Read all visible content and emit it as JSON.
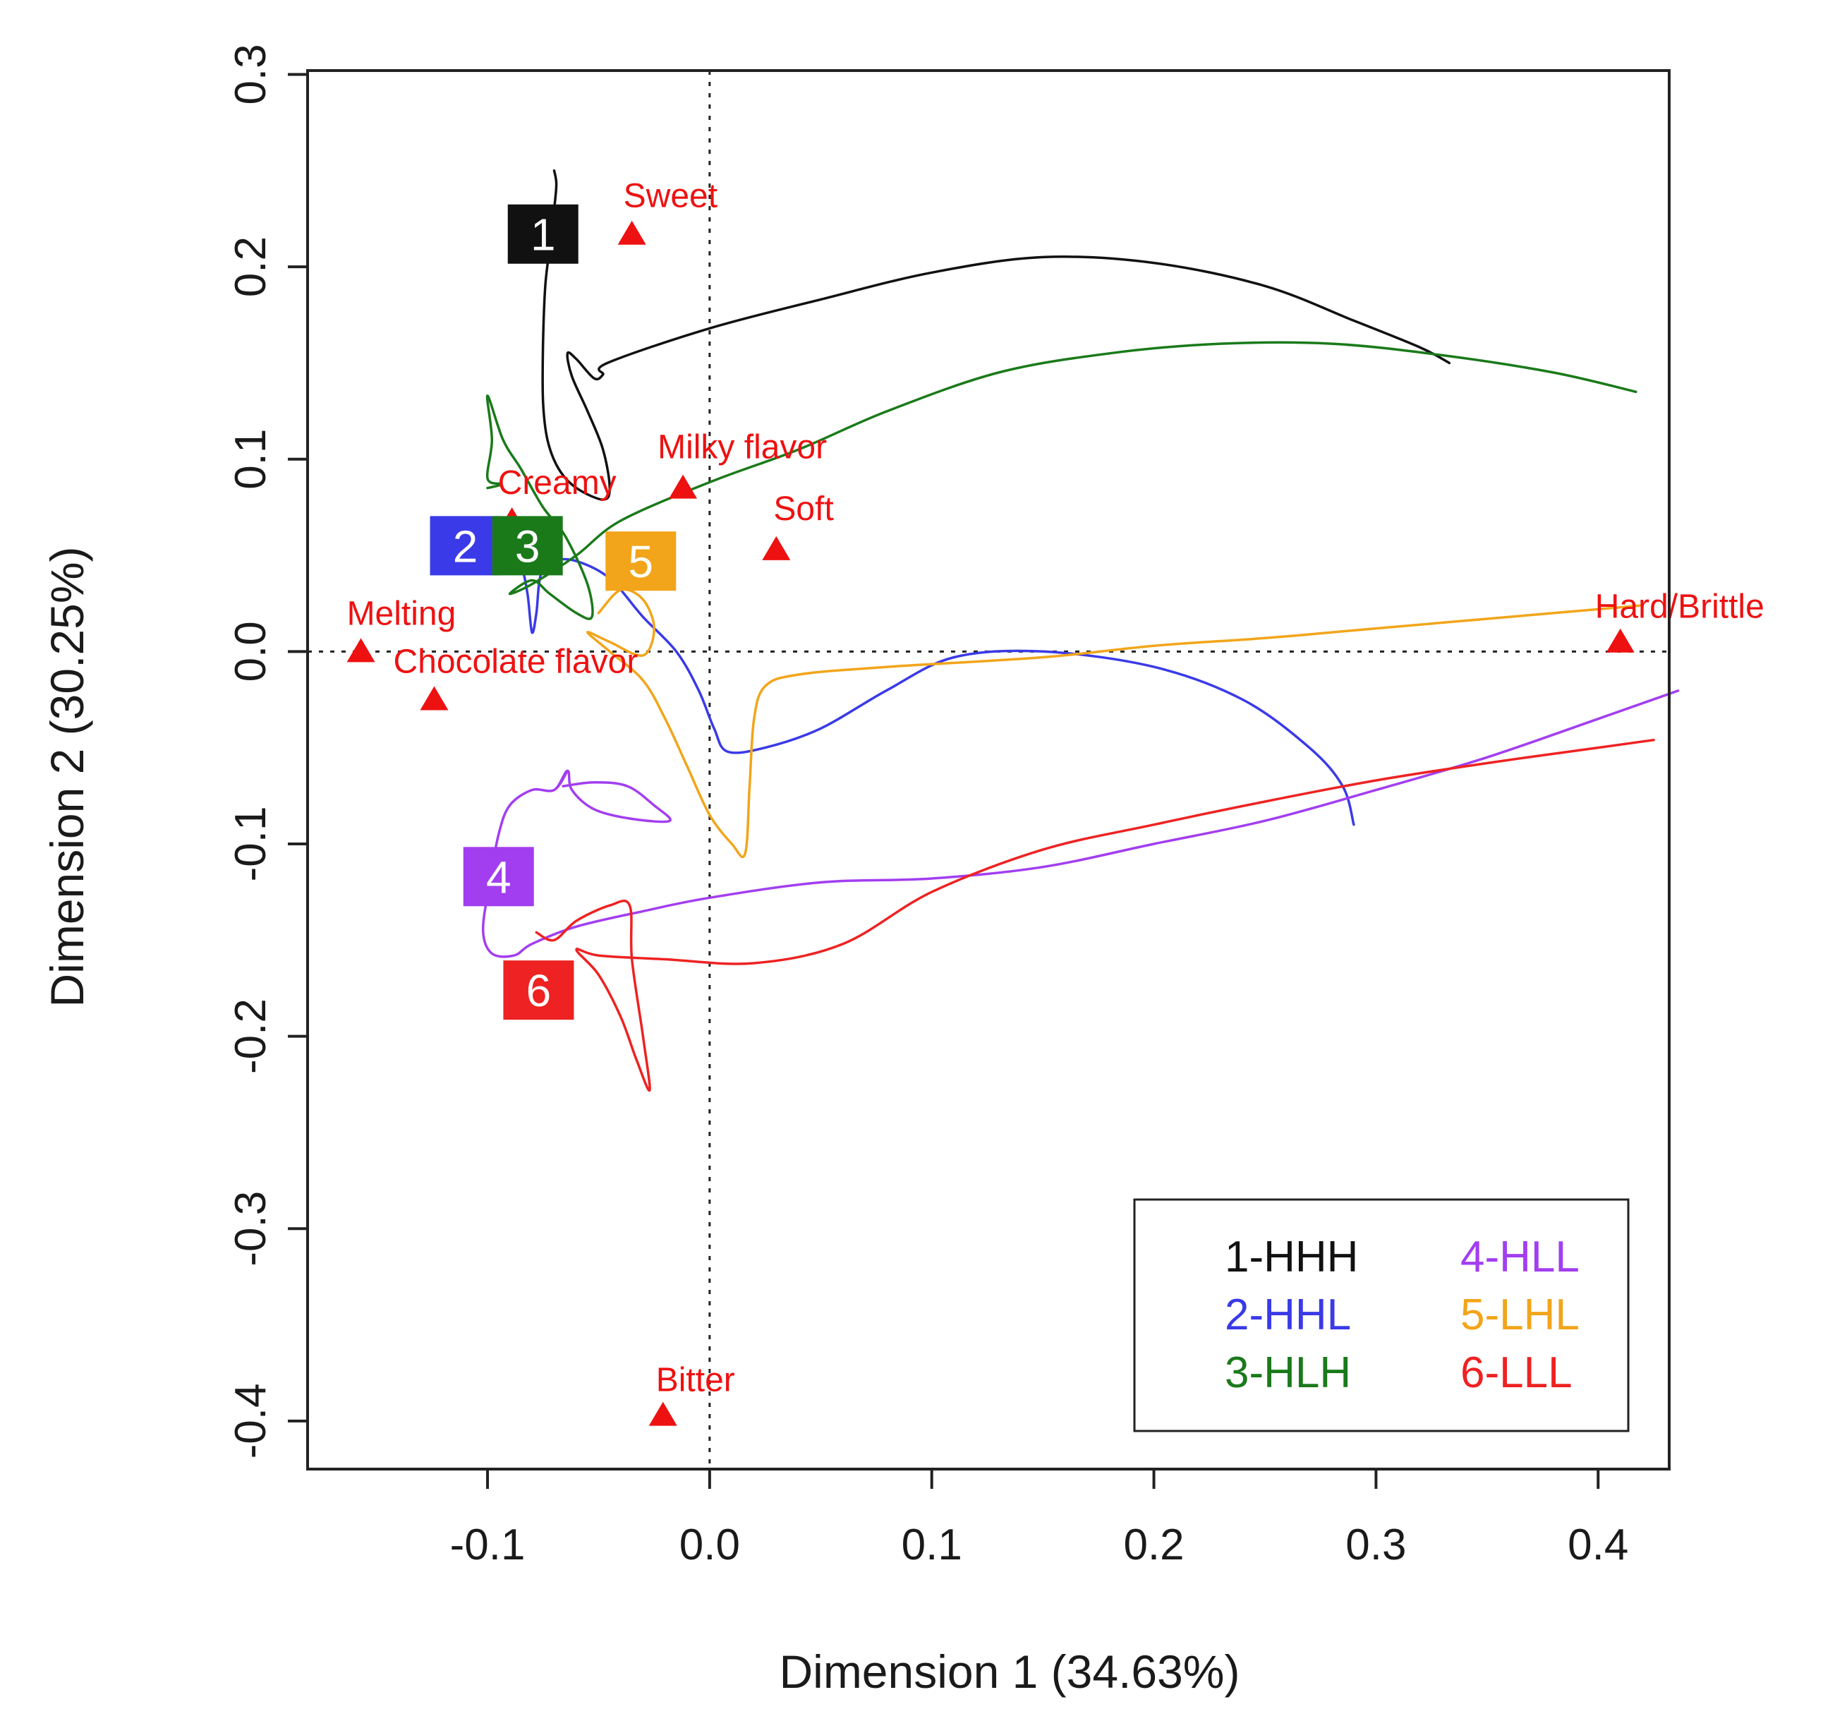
{
  "chart_data": {
    "type": "line",
    "xlabel": "Dimension 1 (34.63%)",
    "ylabel": "Dimension 2 (30.25%)",
    "xlim": [
      -0.181,
      0.432
    ],
    "ylim": [
      -0.425,
      0.302
    ],
    "x_ticks": [
      {
        "value": -0.1,
        "label": "-0.1"
      },
      {
        "value": 0.0,
        "label": "0.0"
      },
      {
        "value": 0.1,
        "label": "0.1"
      },
      {
        "value": 0.2,
        "label": "0.2"
      },
      {
        "value": 0.3,
        "label": "0.3"
      },
      {
        "value": 0.4,
        "label": "0.4"
      }
    ],
    "y_ticks": [
      {
        "value": 0.3,
        "label": "0.3"
      },
      {
        "value": 0.2,
        "label": "0.2"
      },
      {
        "value": 0.1,
        "label": "0.1"
      },
      {
        "value": 0.0,
        "label": "0.0"
      },
      {
        "value": -0.1,
        "label": "-0.1"
      },
      {
        "value": -0.2,
        "label": "-0.2"
      },
      {
        "value": -0.3,
        "label": "-0.3"
      },
      {
        "value": -0.4,
        "label": "-0.4"
      }
    ],
    "reference_lines": {
      "x": 0,
      "y": 0,
      "style": "dotted"
    },
    "attributes": [
      {
        "name": "Sweet",
        "x": -0.035,
        "y": 0.217
      },
      {
        "name": "Milky flavor",
        "x": -0.012,
        "y": 0.085
      },
      {
        "name": "Creamy",
        "x": -0.089,
        "y": 0.068
      },
      {
        "name": "Soft",
        "x": 0.03,
        "y": 0.053
      },
      {
        "name": "Melting",
        "x": -0.157,
        "y": 0.0
      },
      {
        "name": "Chocolate flavor",
        "x": -0.124,
        "y": -0.025
      },
      {
        "name": "Hard/Brittle",
        "x": 0.41,
        "y": 0.005
      },
      {
        "name": "Bitter",
        "x": -0.021,
        "y": -0.397
      }
    ],
    "series": [
      {
        "name": "1-HHH",
        "marker": "1",
        "color": "#111111",
        "marker_pos": {
          "x": -0.075,
          "y": 0.217
        },
        "points": [
          [
            -0.07,
            0.25
          ],
          [
            -0.069,
            0.243
          ],
          [
            -0.07,
            0.23
          ],
          [
            -0.072,
            0.21
          ],
          [
            -0.074,
            0.19
          ],
          [
            -0.075,
            0.16
          ],
          [
            -0.075,
            0.13
          ],
          [
            -0.073,
            0.11
          ],
          [
            -0.068,
            0.095
          ],
          [
            -0.06,
            0.085
          ],
          [
            -0.048,
            0.079
          ],
          [
            -0.045,
            0.085
          ],
          [
            -0.048,
            0.105
          ],
          [
            -0.055,
            0.125
          ],
          [
            -0.062,
            0.143
          ],
          [
            -0.064,
            0.155
          ],
          [
            -0.06,
            0.152
          ],
          [
            -0.052,
            0.142
          ],
          [
            -0.048,
            0.144
          ],
          [
            -0.046,
            0.15
          ],
          [
            0.0,
            0.168
          ],
          [
            0.05,
            0.183
          ],
          [
            0.1,
            0.197
          ],
          [
            0.15,
            0.205
          ],
          [
            0.2,
            0.202
          ],
          [
            0.25,
            0.19
          ],
          [
            0.29,
            0.172
          ],
          [
            0.32,
            0.158
          ],
          [
            0.333,
            0.15
          ]
        ]
      },
      {
        "name": "2-HHL",
        "marker": "2",
        "color": "#3a3ae8",
        "marker_pos": {
          "x": -0.11,
          "y": 0.055
        },
        "points": [
          [
            -0.09,
            0.05
          ],
          [
            -0.085,
            0.045
          ],
          [
            -0.082,
            0.03
          ],
          [
            -0.08,
            0.01
          ],
          [
            -0.078,
            0.02
          ],
          [
            -0.076,
            0.04
          ],
          [
            -0.07,
            0.047
          ],
          [
            -0.06,
            0.047
          ],
          [
            -0.045,
            0.038
          ],
          [
            -0.03,
            0.018
          ],
          [
            -0.015,
            0.0
          ],
          [
            -0.005,
            -0.02
          ],
          [
            0.002,
            -0.04
          ],
          [
            0.008,
            -0.052
          ],
          [
            0.025,
            -0.05
          ],
          [
            0.05,
            -0.04
          ],
          [
            0.08,
            -0.02
          ],
          [
            0.11,
            -0.003
          ],
          [
            0.15,
            0.0
          ],
          [
            0.2,
            -0.008
          ],
          [
            0.24,
            -0.025
          ],
          [
            0.27,
            -0.05
          ],
          [
            0.285,
            -0.07
          ],
          [
            0.29,
            -0.09
          ]
        ]
      },
      {
        "name": "3-HLH",
        "marker": "3",
        "color": "#1a7a1a",
        "marker_pos": {
          "x": -0.082,
          "y": 0.055
        },
        "points": [
          [
            -0.1,
            0.085
          ],
          [
            -0.094,
            0.087
          ],
          [
            -0.1,
            0.09
          ],
          [
            -0.098,
            0.11
          ],
          [
            -0.1,
            0.133
          ],
          [
            -0.093,
            0.11
          ],
          [
            -0.085,
            0.095
          ],
          [
            -0.075,
            0.075
          ],
          [
            -0.065,
            0.06
          ],
          [
            -0.055,
            0.035
          ],
          [
            -0.053,
            0.018
          ],
          [
            -0.06,
            0.02
          ],
          [
            -0.072,
            0.03
          ],
          [
            -0.08,
            0.037
          ],
          [
            -0.09,
            0.03
          ],
          [
            -0.08,
            0.035
          ],
          [
            -0.06,
            0.05
          ],
          [
            -0.04,
            0.068
          ],
          [
            0.0,
            0.088
          ],
          [
            0.04,
            0.105
          ],
          [
            0.08,
            0.125
          ],
          [
            0.13,
            0.145
          ],
          [
            0.18,
            0.155
          ],
          [
            0.23,
            0.16
          ],
          [
            0.28,
            0.16
          ],
          [
            0.33,
            0.154
          ],
          [
            0.38,
            0.145
          ],
          [
            0.417,
            0.135
          ]
        ]
      },
      {
        "name": "4-HLL",
        "marker": "4",
        "color": "#a23ef0",
        "marker_pos": {
          "x": -0.095,
          "y": -0.117
        },
        "points": [
          [
            -0.064,
            -0.062
          ],
          [
            -0.07,
            -0.072
          ],
          [
            -0.08,
            -0.072
          ],
          [
            -0.09,
            -0.08
          ],
          [
            -0.095,
            -0.095
          ],
          [
            -0.099,
            -0.12
          ],
          [
            -0.102,
            -0.145
          ],
          [
            -0.098,
            -0.157
          ],
          [
            -0.088,
            -0.158
          ],
          [
            -0.08,
            -0.152
          ],
          [
            -0.06,
            -0.143
          ],
          [
            -0.03,
            -0.135
          ],
          [
            0.0,
            -0.128
          ],
          [
            0.05,
            -0.12
          ],
          [
            0.1,
            -0.118
          ],
          [
            0.15,
            -0.112
          ],
          [
            0.2,
            -0.1
          ],
          [
            0.25,
            -0.088
          ],
          [
            0.3,
            -0.072
          ],
          [
            0.35,
            -0.055
          ],
          [
            0.4,
            -0.035
          ],
          [
            0.432,
            -0.022
          ],
          [
            0.432,
            -0.022
          ],
          [
            0.4,
            -0.035
          ],
          [
            0.35,
            -0.055
          ],
          [
            0.3,
            -0.072
          ],
          [
            0.25,
            -0.088
          ],
          [
            0.2,
            -0.1
          ],
          [
            0.15,
            -0.112
          ],
          [
            0.1,
            -0.118
          ],
          [
            0.05,
            -0.12
          ],
          [
            0.0,
            -0.128
          ],
          [
            -0.03,
            -0.135
          ],
          [
            -0.06,
            -0.143
          ],
          [
            -0.08,
            -0.152
          ],
          [
            -0.088,
            -0.158
          ],
          [
            -0.098,
            -0.157
          ],
          [
            -0.102,
            -0.145
          ],
          [
            -0.099,
            -0.12
          ],
          [
            -0.095,
            -0.095
          ],
          [
            -0.09,
            -0.08
          ],
          [
            -0.08,
            -0.072
          ],
          [
            -0.07,
            -0.072
          ],
          [
            -0.064,
            -0.062
          ],
          [
            -0.062,
            -0.072
          ],
          [
            -0.052,
            -0.082
          ],
          [
            -0.035,
            -0.087
          ],
          [
            -0.018,
            -0.088
          ],
          [
            -0.025,
            -0.08
          ],
          [
            -0.037,
            -0.07
          ],
          [
            -0.052,
            -0.068
          ],
          [
            -0.066,
            -0.07
          ]
        ]
      },
      {
        "name": "5-LHL",
        "marker": "5",
        "color": "#f2a51a",
        "marker_pos": {
          "x": -0.031,
          "y": 0.047
        },
        "points": [
          [
            -0.05,
            0.02
          ],
          [
            -0.04,
            0.032
          ],
          [
            -0.03,
            0.027
          ],
          [
            -0.025,
            0.012
          ],
          [
            -0.03,
            -0.002
          ],
          [
            -0.045,
            0.005
          ],
          [
            -0.055,
            0.01
          ],
          [
            -0.045,
            0.0
          ],
          [
            -0.03,
            -0.015
          ],
          [
            -0.02,
            -0.035
          ],
          [
            -0.01,
            -0.06
          ],
          [
            0.0,
            -0.085
          ],
          [
            0.01,
            -0.1
          ],
          [
            0.016,
            -0.105
          ],
          [
            0.018,
            -0.07
          ],
          [
            0.02,
            -0.035
          ],
          [
            0.025,
            -0.018
          ],
          [
            0.04,
            -0.012
          ],
          [
            0.08,
            -0.008
          ],
          [
            0.15,
            -0.003
          ],
          [
            0.2,
            0.003
          ],
          [
            0.25,
            0.007
          ],
          [
            0.3,
            0.012
          ],
          [
            0.35,
            0.017
          ],
          [
            0.4,
            0.022
          ],
          [
            0.42,
            0.024
          ]
        ]
      },
      {
        "name": "6-LLL",
        "marker": "6",
        "color": "#ee2222",
        "marker_pos": {
          "x": -0.077,
          "y": -0.176
        },
        "points": [
          [
            -0.078,
            -0.146
          ],
          [
            -0.07,
            -0.15
          ],
          [
            -0.06,
            -0.14
          ],
          [
            -0.045,
            -0.132
          ],
          [
            -0.036,
            -0.132
          ],
          [
            -0.035,
            -0.16
          ],
          [
            -0.03,
            -0.2
          ],
          [
            -0.027,
            -0.228
          ],
          [
            -0.033,
            -0.212
          ],
          [
            -0.04,
            -0.19
          ],
          [
            -0.05,
            -0.168
          ],
          [
            -0.06,
            -0.155
          ],
          [
            -0.05,
            -0.158
          ],
          [
            -0.02,
            -0.16
          ],
          [
            0.02,
            -0.162
          ],
          [
            0.06,
            -0.152
          ],
          [
            0.1,
            -0.125
          ],
          [
            0.15,
            -0.103
          ],
          [
            0.2,
            -0.09
          ],
          [
            0.25,
            -0.078
          ],
          [
            0.3,
            -0.067
          ],
          [
            0.35,
            -0.058
          ],
          [
            0.4,
            -0.05
          ],
          [
            0.425,
            -0.046
          ]
        ]
      }
    ],
    "legend": {
      "position": "bottom-right",
      "entries": [
        "1-HHH",
        "2-HHL",
        "3-HLH",
        "4-HLL",
        "5-LHL",
        "6-LLL"
      ]
    }
  }
}
